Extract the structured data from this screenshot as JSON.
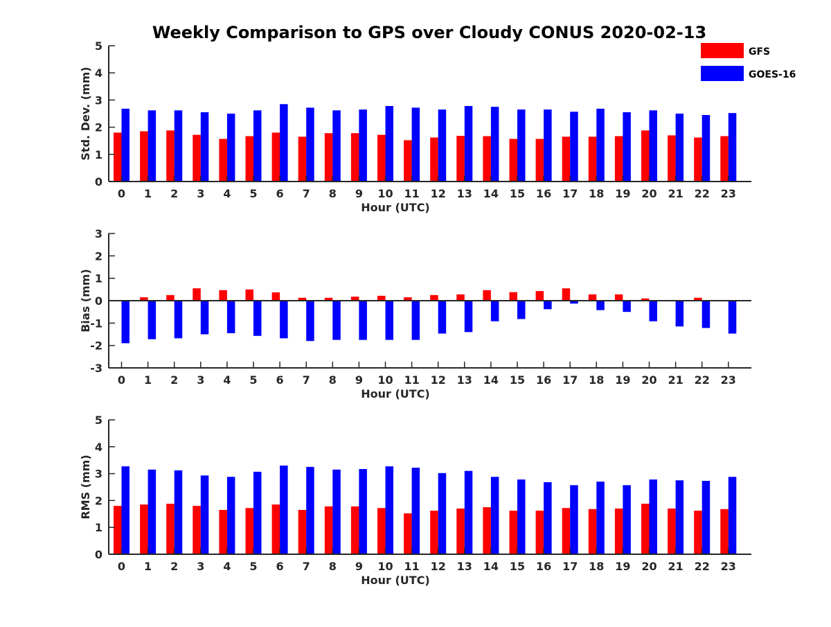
{
  "title": "Weekly Comparison to GPS over Cloudy CONUS 2020-02-13",
  "colors": {
    "GFS": "#ff0000",
    "GOES-16": "#0000ff",
    "axis": "#262626"
  },
  "legend": {
    "position": "top-right",
    "entries": [
      "GFS",
      "GOES-16"
    ]
  },
  "chart_data": [
    {
      "type": "bar",
      "xlabel": "Hour (UTC)",
      "ylabel": "Std. Dev. (mm)",
      "ylim": [
        0,
        5
      ],
      "yticks": [
        0,
        1,
        2,
        3,
        4,
        5
      ],
      "grid": false,
      "categories": [
        "0",
        "1",
        "2",
        "3",
        "4",
        "5",
        "6",
        "7",
        "8",
        "9",
        "10",
        "11",
        "12",
        "13",
        "14",
        "15",
        "16",
        "17",
        "18",
        "19",
        "20",
        "21",
        "22",
        "23"
      ],
      "series": [
        {
          "name": "GFS",
          "values": [
            1.8,
            1.85,
            1.88,
            1.72,
            1.57,
            1.67,
            1.8,
            1.65,
            1.78,
            1.78,
            1.72,
            1.52,
            1.62,
            1.68,
            1.67,
            1.57,
            1.57,
            1.65,
            1.65,
            1.67,
            1.88,
            1.7,
            1.62,
            1.67
          ]
        },
        {
          "name": "GOES-16",
          "values": [
            2.68,
            2.62,
            2.62,
            2.55,
            2.5,
            2.62,
            2.85,
            2.72,
            2.62,
            2.65,
            2.78,
            2.72,
            2.65,
            2.78,
            2.75,
            2.65,
            2.65,
            2.57,
            2.68,
            2.55,
            2.62,
            2.5,
            2.45,
            2.52
          ]
        }
      ]
    },
    {
      "type": "bar",
      "xlabel": "Hour (UTC)",
      "ylabel": "Bias (mm)",
      "ylim": [
        -3,
        3
      ],
      "yticks": [
        -3,
        -2,
        -1,
        0,
        1,
        2,
        3
      ],
      "grid": false,
      "categories": [
        "0",
        "1",
        "2",
        "3",
        "4",
        "5",
        "6",
        "7",
        "8",
        "9",
        "10",
        "11",
        "12",
        "13",
        "14",
        "15",
        "16",
        "17",
        "18",
        "19",
        "20",
        "21",
        "22",
        "23"
      ],
      "series": [
        {
          "name": "GFS",
          "values": [
            0.0,
            0.15,
            0.25,
            0.55,
            0.47,
            0.5,
            0.37,
            0.13,
            0.13,
            0.18,
            0.22,
            0.15,
            0.25,
            0.28,
            0.47,
            0.38,
            0.43,
            0.55,
            0.28,
            0.28,
            0.1,
            -0.03,
            0.13,
            -0.02
          ]
        },
        {
          "name": "GOES-16",
          "values": [
            -1.9,
            -1.72,
            -1.68,
            -1.5,
            -1.45,
            -1.57,
            -1.68,
            -1.8,
            -1.75,
            -1.75,
            -1.75,
            -1.75,
            -1.47,
            -1.4,
            -0.92,
            -0.82,
            -0.38,
            -0.13,
            -0.42,
            -0.5,
            -0.92,
            -1.15,
            -1.22,
            -1.47
          ]
        }
      ]
    },
    {
      "type": "bar",
      "xlabel": "Hour (UTC)",
      "ylabel": "RMS (mm)",
      "ylim": [
        0,
        5
      ],
      "yticks": [
        0,
        1,
        2,
        3,
        4,
        5
      ],
      "grid": false,
      "categories": [
        "0",
        "1",
        "2",
        "3",
        "4",
        "5",
        "6",
        "7",
        "8",
        "9",
        "10",
        "11",
        "12",
        "13",
        "14",
        "15",
        "16",
        "17",
        "18",
        "19",
        "20",
        "21",
        "22",
        "23"
      ],
      "series": [
        {
          "name": "GFS",
          "values": [
            1.8,
            1.85,
            1.88,
            1.8,
            1.65,
            1.72,
            1.85,
            1.65,
            1.78,
            1.78,
            1.72,
            1.52,
            1.62,
            1.7,
            1.75,
            1.62,
            1.62,
            1.72,
            1.68,
            1.7,
            1.88,
            1.7,
            1.62,
            1.68
          ]
        },
        {
          "name": "GOES-16",
          "values": [
            3.27,
            3.15,
            3.12,
            2.93,
            2.88,
            3.07,
            3.3,
            3.25,
            3.15,
            3.17,
            3.27,
            3.22,
            3.02,
            3.1,
            2.88,
            2.78,
            2.68,
            2.57,
            2.7,
            2.57,
            2.78,
            2.75,
            2.73,
            2.88
          ]
        }
      ]
    }
  ]
}
